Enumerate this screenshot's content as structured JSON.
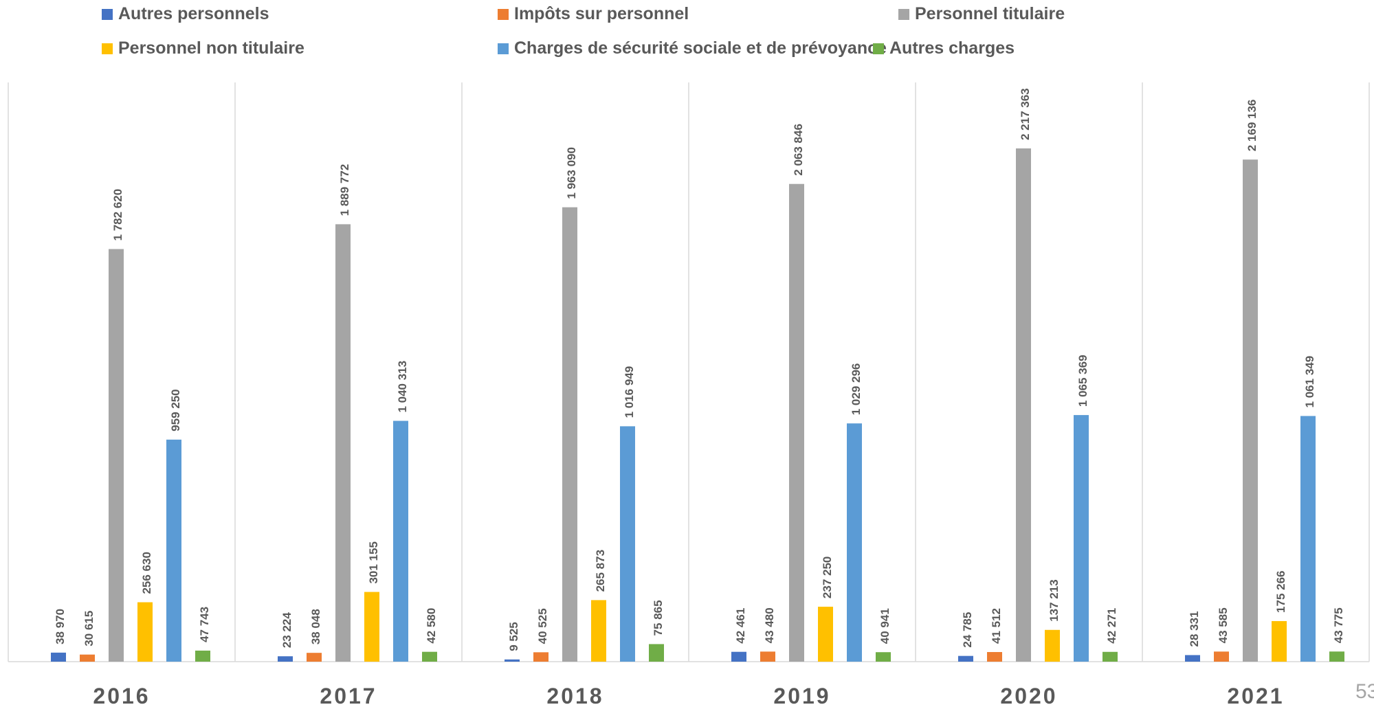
{
  "chart_data": {
    "type": "bar",
    "categories": [
      "2016",
      "2017",
      "2018",
      "2019",
      "2020",
      "2021"
    ],
    "series": [
      {
        "name": "Autres personnels",
        "color": "#4472C4",
        "values": [
          38970,
          23224,
          9525,
          42461,
          24785,
          28331
        ],
        "labels": [
          "38 970",
          "23 224",
          "9 525",
          "42 461",
          "24 785",
          "28 331"
        ]
      },
      {
        "name": "Impôts sur personnel",
        "color": "#ED7D31",
        "values": [
          30615,
          38048,
          40525,
          43480,
          41512,
          43585
        ],
        "labels": [
          "30 615",
          "38 048",
          "40 525",
          "43 480",
          "41 512",
          "43 585"
        ]
      },
      {
        "name": "Personnel titulaire",
        "color": "#A5A5A5",
        "values": [
          1782620,
          1889772,
          1963090,
          2063846,
          2217363,
          2169136
        ],
        "labels": [
          "1 782 620",
          "1 889 772",
          "1 963 090",
          "2 063 846",
          "2 217 363",
          "2 169 136"
        ]
      },
      {
        "name": "Personnel non titulaire",
        "color": "#FFC000",
        "values": [
          256630,
          301155,
          265873,
          237250,
          137213,
          175266
        ],
        "labels": [
          "256 630",
          "301 155",
          "265 873",
          "237 250",
          "137 213",
          "175 266"
        ]
      },
      {
        "name": "Charges de sécurité sociale et de prévoyance",
        "color": "#5B9BD5",
        "values": [
          959250,
          1040313,
          1016949,
          1029296,
          1065369,
          1061349
        ],
        "labels": [
          "959 250",
          "1 040 313",
          "1 016 949",
          "1 029 296",
          "1 065 369",
          "1 061 349"
        ]
      },
      {
        "name": "Autres charges",
        "color": "#70AD47",
        "values": [
          47743,
          42580,
          75865,
          40941,
          42271,
          43775
        ],
        "labels": [
          "47 743",
          "42 580",
          "75 865",
          "40 941",
          "42 271",
          "43 775"
        ]
      }
    ],
    "ylim": [
      0,
      2217363
    ],
    "grid": false,
    "legend_position": "top",
    "category_separators": true
  },
  "page_number": "53"
}
